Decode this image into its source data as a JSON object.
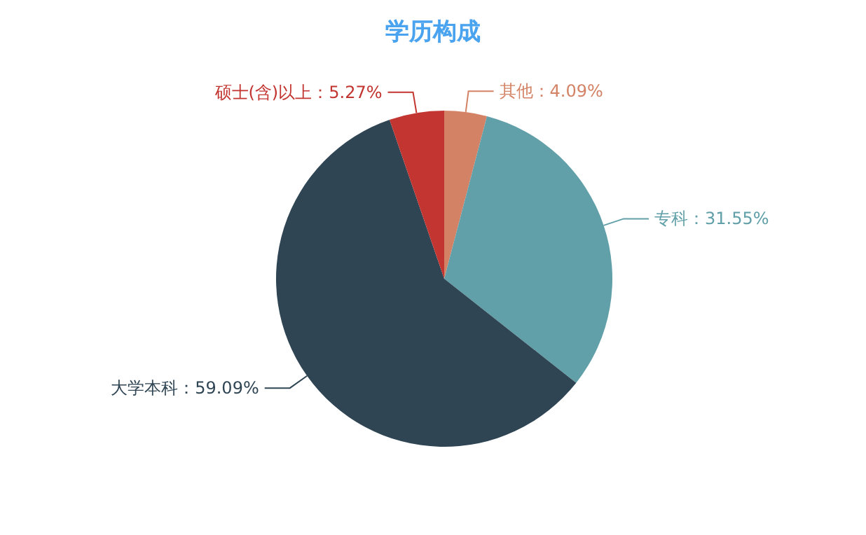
{
  "chart_data": {
    "type": "pie",
    "title": "学历构成",
    "categories": [
      "其他",
      "专科",
      "大学本科",
      "硕士(含)以上"
    ],
    "values": [
      4.09,
      31.55,
      59.09,
      5.27
    ],
    "value_labels": [
      "：4.09%",
      "：31.55%",
      "：59.09%",
      "：5.27%"
    ],
    "colors": [
      "#d48265",
      "#61a0a8",
      "#2f4554",
      "#c23531"
    ],
    "legend": false
  }
}
